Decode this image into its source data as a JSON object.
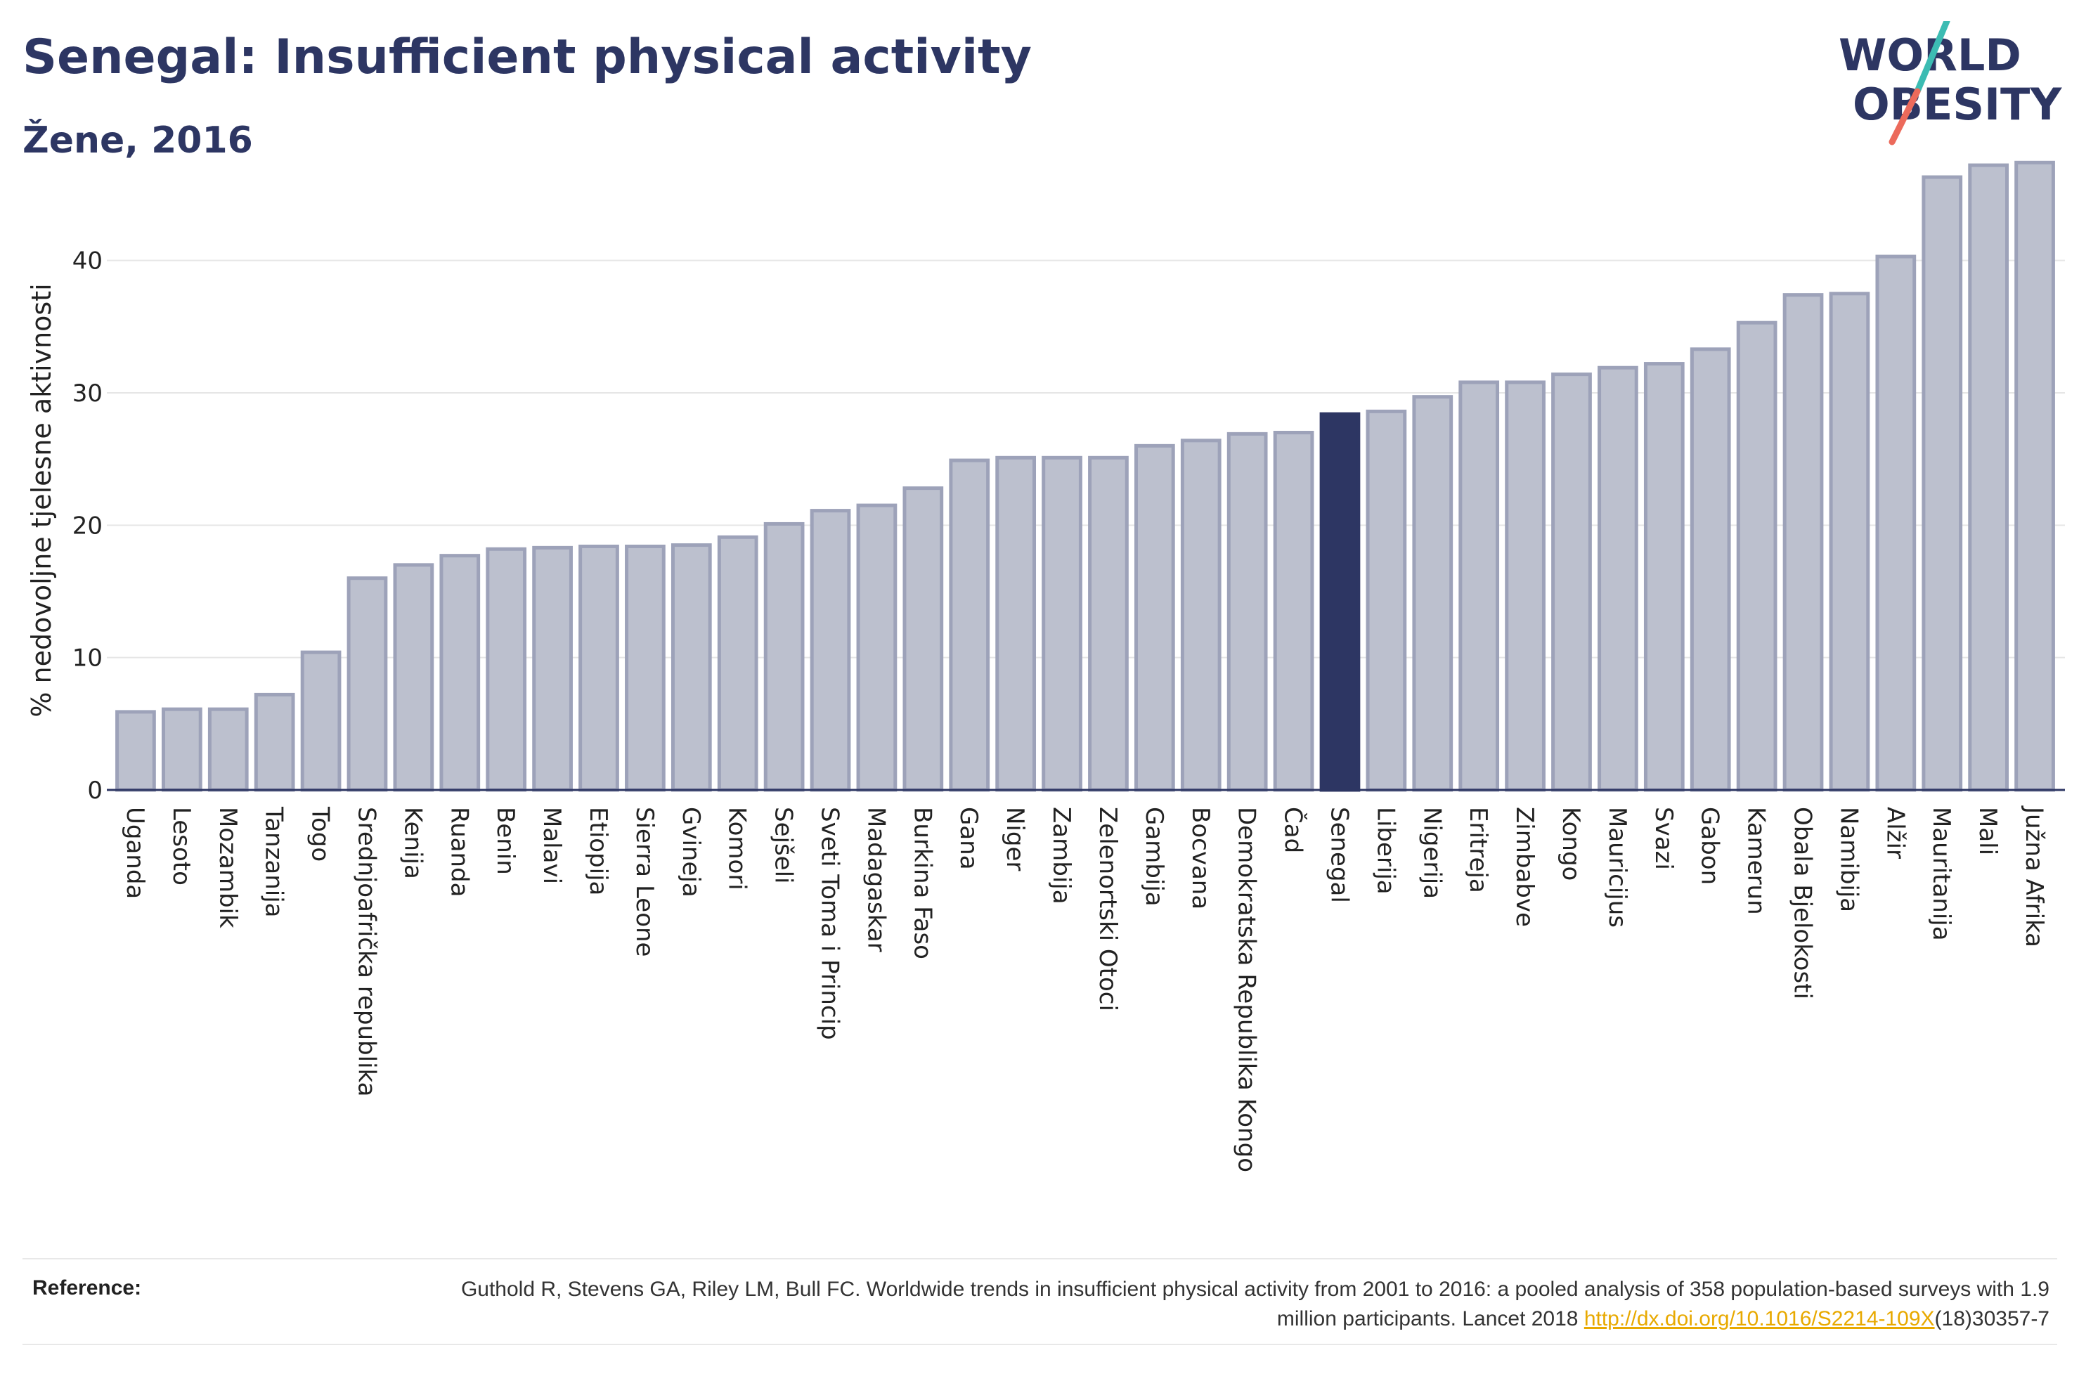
{
  "header": {
    "title": "Senegal: Insufficient physical activity",
    "subtitle": "Žene, 2016"
  },
  "logo": {
    "line1": "WORLD",
    "line2": "OBESITY",
    "colors": {
      "text": "#2d3663",
      "slash_teal": "#3cbcb3",
      "slash_coral": "#ec6a5b"
    }
  },
  "chart_data": {
    "type": "bar",
    "title": "Senegal: Insufficient physical activity",
    "subtitle": "Žene, 2016",
    "xlabel": "",
    "ylabel": "% nedovoljne tjelesne aktivnosti",
    "ylim": [
      0,
      48
    ],
    "yticks": [
      0,
      10,
      20,
      30,
      40
    ],
    "grid": true,
    "highlight": "Senegal",
    "colors": {
      "bar": "#bcc0ce",
      "bar_edge": "#9da2b9",
      "highlight": "#2d3663",
      "axis": "#2d3663",
      "grid": "#e6e6e6"
    },
    "categories": [
      "Uganda",
      "Lesoto",
      "Mozambik",
      "Tanzanija",
      "Togo",
      "Srednjoafrička republika",
      "Kenija",
      "Ruanda",
      "Benin",
      "Malavi",
      "Etiopija",
      "Sierra Leone",
      "Gvineja",
      "Komori",
      "Sejšeli",
      "Sveti Toma i Princip",
      "Madagaskar",
      "Burkina Faso",
      "Gana",
      "Niger",
      "Zambija",
      "Zelenortski Otoci",
      "Gambija",
      "Bocvana",
      "Demokratska Republika Kongo",
      "Čad",
      "Senegal",
      "Liberija",
      "Nigerija",
      "Eritreja",
      "Zimbabve",
      "Kongo",
      "Mauricijus",
      "Svazi",
      "Gabon",
      "Kamerun",
      "Obala Bjelokosti",
      "Namibija",
      "Alžir",
      "Mauritanija",
      "Mali",
      "Južna Afrika"
    ],
    "values": [
      5.9,
      6.1,
      6.1,
      7.2,
      10.4,
      16.0,
      17.0,
      17.7,
      18.2,
      18.3,
      18.4,
      18.4,
      18.5,
      19.1,
      20.1,
      21.1,
      21.5,
      22.8,
      24.9,
      25.1,
      25.1,
      25.1,
      26.0,
      26.4,
      26.9,
      27.0,
      28.4,
      28.6,
      29.7,
      30.8,
      30.8,
      31.4,
      31.9,
      32.2,
      33.3,
      35.3,
      37.4,
      37.5,
      40.3,
      46.3,
      47.2,
      47.4
    ]
  },
  "reference": {
    "label": "Reference:",
    "text": "Guthold R, Stevens GA, Riley LM, Bull FC. Worldwide trends in insufficient physical activity from 2001 to 2016: a pooled analysis of 358 population-based surveys with 1.9 million participants. Lancet 2018 ",
    "link": "http://dx.doi.org/10.1016/S2214-109X",
    "suffix": "(18)30357-7"
  }
}
